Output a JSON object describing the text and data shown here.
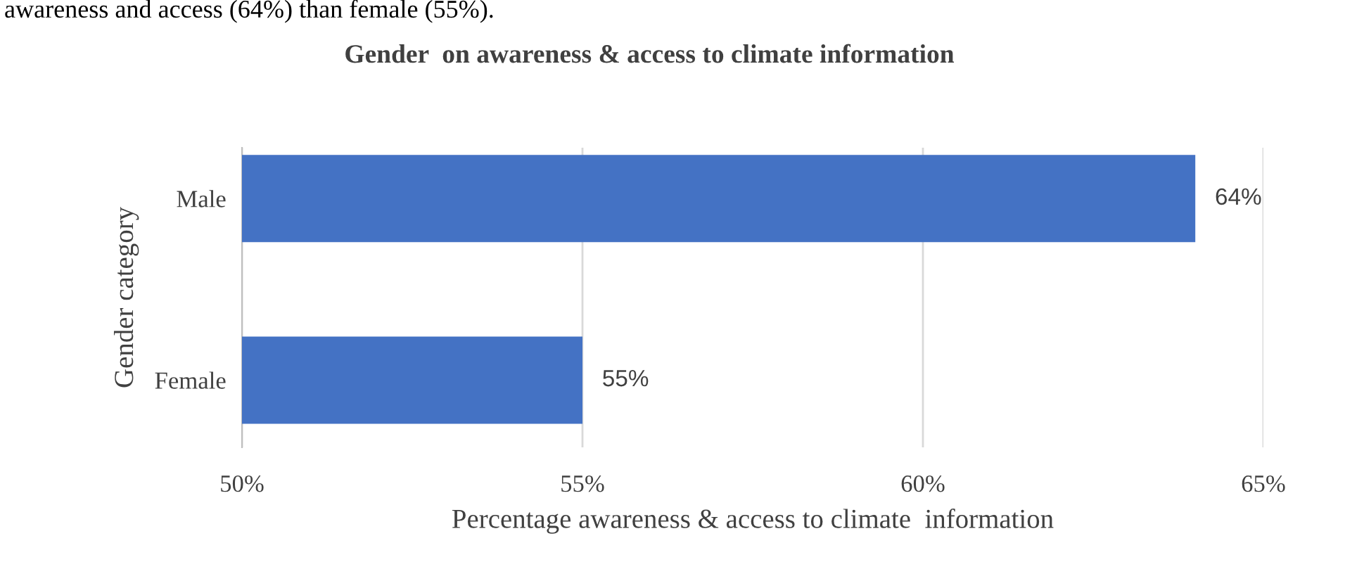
{
  "chart_data": {
    "type": "bar",
    "orientation": "horizontal",
    "title": "Gender  on awareness & access to climate information",
    "xlabel": "Percentage awareness & access to climate  information",
    "ylabel": "Gender category",
    "categories": [
      "Male",
      "Female"
    ],
    "values": [
      64,
      55
    ],
    "value_labels": [
      "64%",
      "55%"
    ],
    "color": "#4472c4",
    "xlim": [
      50,
      65
    ],
    "xticks": [
      {
        "value": 50,
        "label": "50%"
      },
      {
        "value": 55,
        "label": "55%"
      },
      {
        "value": 60,
        "label": "60%"
      },
      {
        "value": 65,
        "label": "65%"
      }
    ],
    "grid": "x",
    "annotations": [
      "awareness and access (64%) than female (55%)."
    ]
  }
}
